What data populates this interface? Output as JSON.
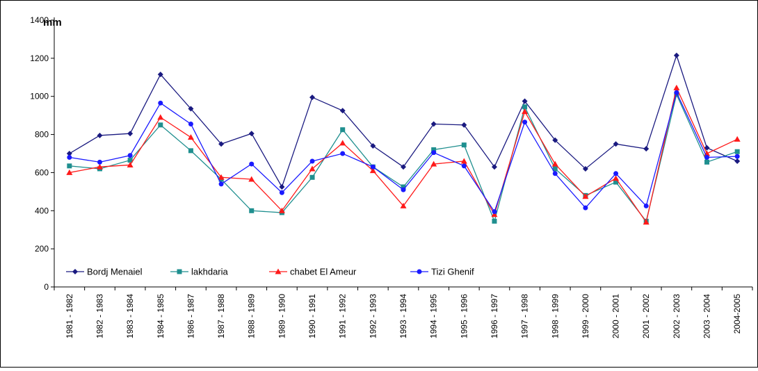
{
  "chart_data": {
    "type": "line",
    "title": "",
    "xlabel": "",
    "ylabel": "mm",
    "ylim": [
      0,
      1400
    ],
    "yticks": [
      0,
      200,
      400,
      600,
      800,
      1000,
      1200,
      1400
    ],
    "grid": false,
    "legend_position": "bottom-left",
    "categories": [
      "1981 - 1982",
      "1982 - 1983",
      "1983 - 1984",
      "1984 - 1985",
      "1986 - 1987",
      "1987 - 1988",
      "1988 - 1989",
      "1989 - 1990",
      "1990 - 1991",
      "1991 - 1992",
      "1992 - 1993",
      "1993 - 1994",
      "1994 - 1995",
      "1995 - 1996",
      "1996 - 1997",
      "1997 - 1998",
      "1998 - 1999",
      "1999 - 2000",
      "2000 - 2001",
      "2001 - 2002",
      "2002 - 2003",
      "2003 - 2004",
      "2004-2005"
    ],
    "series": [
      {
        "name": "Bordj Menaiel",
        "color": "#1a1a80",
        "marker": "diamond",
        "values": [
          700,
          795,
          805,
          1115,
          935,
          750,
          805,
          525,
          995,
          925,
          740,
          630,
          855,
          850,
          630,
          975,
          770,
          620,
          750,
          725,
          1215,
          730,
          660
        ]
      },
      {
        "name": "lakhdaria",
        "color": "#1f8f8f",
        "marker": "square",
        "values": [
          635,
          620,
          665,
          850,
          715,
          565,
          400,
          390,
          575,
          825,
          630,
          525,
          720,
          745,
          345,
          945,
          620,
          480,
          550,
          345,
          1010,
          655,
          710
        ]
      },
      {
        "name": "chabet El Ameur",
        "color": "#ff1a1a",
        "marker": "triangle",
        "values": [
          600,
          630,
          640,
          890,
          785,
          575,
          565,
          400,
          620,
          755,
          610,
          425,
          645,
          660,
          380,
          920,
          645,
          475,
          570,
          340,
          1045,
          700,
          775
        ]
      },
      {
        "name": "Tizi Ghenif",
        "color": "#1a1aff",
        "marker": "circle",
        "values": [
          680,
          655,
          690,
          965,
          855,
          540,
          645,
          495,
          660,
          700,
          630,
          510,
          705,
          635,
          395,
          865,
          595,
          415,
          595,
          425,
          1020,
          680,
          685
        ]
      }
    ]
  }
}
